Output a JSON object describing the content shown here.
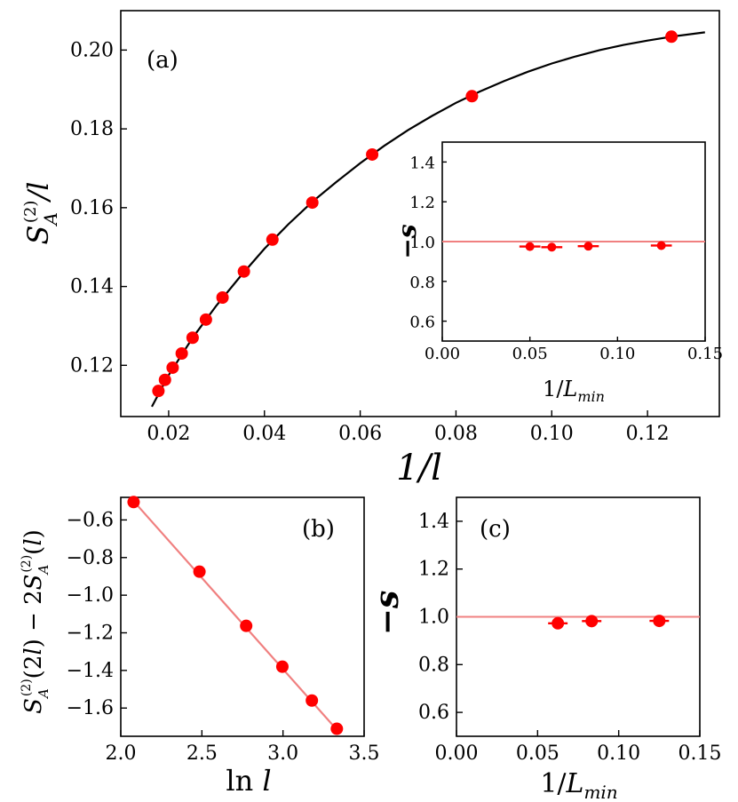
{
  "colors": {
    "points": "#ff0000",
    "fit_main": "#000000",
    "fit_ref": "#f08080",
    "axes": "#000000"
  },
  "chart_data": [
    {
      "panel": "a",
      "panel_label": "(a)",
      "type": "scatter",
      "xlabel": "1/l",
      "ylabel": "S_A^(2)/l",
      "xlim": [
        0.01,
        0.135
      ],
      "ylim": [
        0.107,
        0.21
      ],
      "xticks": [
        "0.02",
        "0.04",
        "0.06",
        "0.08",
        "0.10",
        "0.12"
      ],
      "yticks": [
        "0.12",
        "0.14",
        "0.16",
        "0.18",
        "0.20"
      ],
      "series": [
        {
          "kind": "points_with_errorbars",
          "x": [
            0.01786,
            0.01923,
            0.02083,
            0.02273,
            0.025,
            0.02778,
            0.03125,
            0.03571,
            0.04167,
            0.05,
            0.0625,
            0.08333,
            0.125
          ],
          "y": [
            0.1135,
            0.1163,
            0.1194,
            0.123,
            0.127,
            0.1316,
            0.1372,
            0.1438,
            0.1519,
            0.1613,
            0.1735,
            0.1883,
            0.2034
          ],
          "xerr": [
            0.0012,
            0.0012,
            0.0012,
            0.0012,
            0.0012,
            0.0012,
            0.0012,
            0.0012,
            0.0012,
            0.0012,
            0.0012,
            0.0012,
            0.0012
          ]
        },
        {
          "kind": "fit_curve",
          "x": [
            0.0165,
            0.02,
            0.025,
            0.03,
            0.035,
            0.04,
            0.045,
            0.05,
            0.055,
            0.06,
            0.065,
            0.07,
            0.075,
            0.08,
            0.085,
            0.09,
            0.095,
            0.1,
            0.105,
            0.11,
            0.115,
            0.12,
            0.125,
            0.132
          ],
          "y": [
            0.1095,
            0.1175,
            0.127,
            0.1352,
            0.1426,
            0.1496,
            0.1558,
            0.1615,
            0.1665,
            0.1713,
            0.1757,
            0.1797,
            0.1833,
            0.1866,
            0.1895,
            0.1921,
            0.1945,
            0.1966,
            0.1984,
            0.2,
            0.2013,
            0.2024,
            0.2034,
            0.2045
          ]
        }
      ]
    },
    {
      "panel": "a-inset",
      "type": "scatter",
      "xlabel": "1/L_min",
      "ylabel": "−s",
      "xlim": [
        0.0,
        0.15
      ],
      "ylim": [
        0.5,
        1.5
      ],
      "xticks": [
        "0.00",
        "0.05",
        "0.10",
        "0.15"
      ],
      "yticks": [
        "0.6",
        "0.8",
        "1.0",
        "1.2",
        "1.4"
      ],
      "reference_line": 1.0,
      "series": [
        {
          "kind": "points_with_errorbars",
          "x": [
            0.05,
            0.0625,
            0.08333,
            0.125
          ],
          "y": [
            0.975,
            0.972,
            0.977,
            0.98
          ],
          "xerr": [
            0.006,
            0.006,
            0.006,
            0.006
          ],
          "yerr": [
            0.02,
            0.02,
            0.02,
            0.02
          ]
        }
      ]
    },
    {
      "panel": "b",
      "panel_label": "(b)",
      "type": "scatter",
      "xlabel": "ln l",
      "ylabel": "S_A^(2)(2l) − 2S_A^(2)(l)",
      "xlim": [
        2.0,
        3.5
      ],
      "ylim": [
        -1.75,
        -0.48
      ],
      "xticks": [
        "2.0",
        "2.5",
        "3.0",
        "3.5"
      ],
      "yticks": [
        "−0.6",
        "−0.8",
        "−1.0",
        "−1.2",
        "−1.4",
        "−1.6"
      ],
      "series": [
        {
          "kind": "points_with_errorbars",
          "x": [
            2.079,
            2.485,
            2.773,
            2.996,
            3.178,
            3.332
          ],
          "y": [
            -0.505,
            -0.875,
            -1.163,
            -1.38,
            -1.56,
            -1.71
          ],
          "xerr": [
            0.025,
            0.025,
            0.025,
            0.025,
            0.025,
            0.025
          ]
        },
        {
          "kind": "fit_line",
          "x": [
            2.079,
            3.332
          ],
          "y": [
            -0.5,
            -1.715
          ]
        }
      ]
    },
    {
      "panel": "c",
      "panel_label": "(c)",
      "type": "scatter",
      "xlabel": "1/L_min",
      "ylabel": "−s",
      "xlim": [
        0.0,
        0.15
      ],
      "ylim": [
        0.5,
        1.5
      ],
      "xticks": [
        "0.00",
        "0.05",
        "0.10",
        "0.15"
      ],
      "yticks": [
        "0.6",
        "0.8",
        "1.0",
        "1.2",
        "1.4"
      ],
      "reference_line": 1.0,
      "series": [
        {
          "kind": "points_with_errorbars",
          "x": [
            0.0625,
            0.08333,
            0.125
          ],
          "y": [
            0.973,
            0.982,
            0.983
          ],
          "xerr": [
            0.006,
            0.006,
            0.006
          ],
          "yerr": [
            0.025,
            0.02,
            0.015
          ]
        }
      ]
    }
  ]
}
